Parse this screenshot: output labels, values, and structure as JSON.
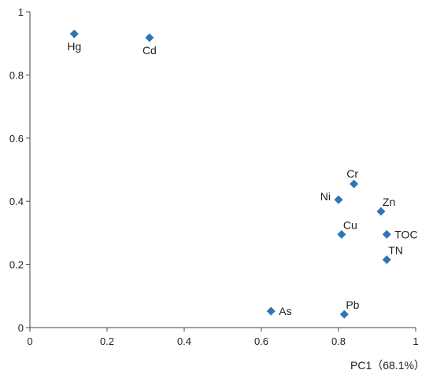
{
  "chart_data": {
    "type": "scatter",
    "title": "",
    "xlabel": "PC1（68.1%）",
    "ylabel": "",
    "xlim": [
      0,
      1
    ],
    "ylim": [
      0,
      1
    ],
    "x_ticks": [
      0,
      0.2,
      0.4,
      0.6,
      0.8,
      1
    ],
    "x_tick_labels": [
      "0",
      "0.2",
      "0.4",
      "0.6",
      "0.8",
      "1"
    ],
    "y_ticks": [
      0,
      0.2,
      0.4,
      0.6,
      0.8,
      1
    ],
    "y_tick_labels": [
      "0",
      "0.2",
      "0.4",
      "0.6",
      "0.8",
      "1"
    ],
    "grid": false,
    "marker": "diamond",
    "color": "#2e75b6",
    "points": [
      {
        "label": "Hg",
        "x": 0.115,
        "y": 0.93,
        "label_pos": "below"
      },
      {
        "label": "Cd",
        "x": 0.31,
        "y": 0.918,
        "label_pos": "below"
      },
      {
        "label": "Cr",
        "x": 0.84,
        "y": 0.455,
        "label_pos": "above-left"
      },
      {
        "label": "Ni",
        "x": 0.8,
        "y": 0.405,
        "label_pos": "left"
      },
      {
        "label": "Zn",
        "x": 0.91,
        "y": 0.368,
        "label_pos": "above-right"
      },
      {
        "label": "Cu",
        "x": 0.808,
        "y": 0.295,
        "label_pos": "above-right"
      },
      {
        "label": "TOC",
        "x": 0.925,
        "y": 0.295,
        "label_pos": "right"
      },
      {
        "label": "TN",
        "x": 0.925,
        "y": 0.215,
        "label_pos": "above-right"
      },
      {
        "label": "As",
        "x": 0.625,
        "y": 0.052,
        "label_pos": "right"
      },
      {
        "label": "Pb",
        "x": 0.815,
        "y": 0.042,
        "label_pos": "above-right"
      }
    ]
  }
}
